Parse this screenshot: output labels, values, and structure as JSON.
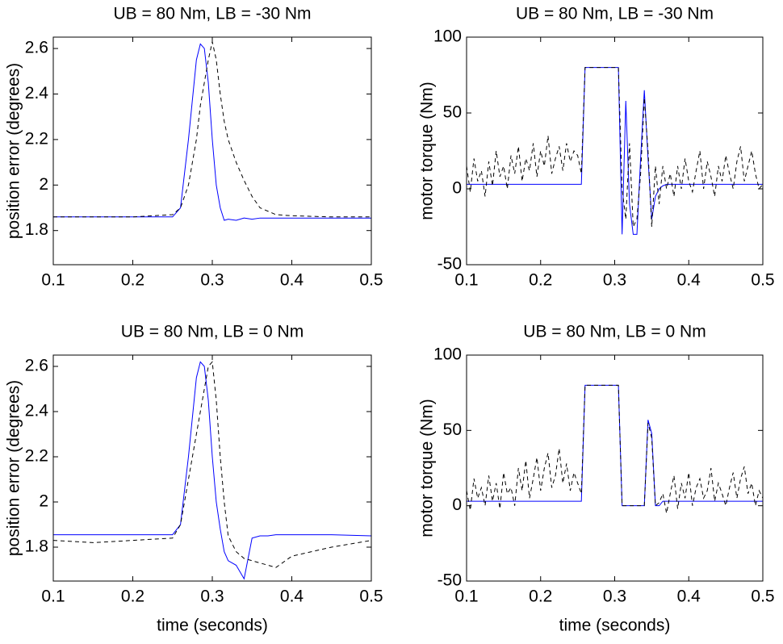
{
  "chart_data": [
    {
      "type": "line",
      "title": "UB = 80 Nm, LB = -30 Nm",
      "y_label": "position error (degrees)",
      "x": [
        0.1,
        0.15,
        0.2,
        0.25,
        0.26,
        0.27,
        0.28,
        0.285,
        0.29,
        0.295,
        0.3,
        0.305,
        0.31,
        0.315,
        0.32,
        0.33,
        0.34,
        0.35,
        0.36,
        0.38,
        0.4,
        0.45,
        0.5
      ],
      "series": [
        {
          "color": "#0000ff",
          "style": "solid",
          "values": [
            1.86,
            1.86,
            1.86,
            1.86,
            1.9,
            2.2,
            2.55,
            2.62,
            2.6,
            2.45,
            2.2,
            2.0,
            1.9,
            1.845,
            1.85,
            1.845,
            1.855,
            1.85,
            1.855,
            1.855,
            1.855,
            1.855,
            1.855
          ]
        },
        {
          "color": "#000000",
          "style": "dashed",
          "values": [
            1.86,
            1.86,
            1.86,
            1.87,
            1.9,
            2.0,
            2.2,
            2.35,
            2.45,
            2.55,
            2.63,
            2.55,
            2.4,
            2.28,
            2.2,
            2.1,
            2.02,
            1.95,
            1.9,
            1.87,
            1.865,
            1.86,
            1.86
          ]
        }
      ],
      "xlim": [
        0.1,
        0.5
      ],
      "xticks": [
        0.1,
        0.2,
        0.3,
        0.4,
        0.5
      ],
      "ylim": [
        1.65,
        2.65
      ],
      "yticks": [
        1.8,
        2,
        2.2,
        2.4,
        2.6
      ],
      "grid": false
    },
    {
      "type": "line",
      "title": "UB = 80 Nm, LB = -30 Nm",
      "y_label": "motor torque (Nm)",
      "x": [
        0.1,
        0.105,
        0.11,
        0.115,
        0.12,
        0.125,
        0.13,
        0.135,
        0.14,
        0.145,
        0.15,
        0.155,
        0.16,
        0.165,
        0.17,
        0.175,
        0.18,
        0.185,
        0.19,
        0.195,
        0.2,
        0.205,
        0.21,
        0.215,
        0.22,
        0.225,
        0.23,
        0.235,
        0.24,
        0.245,
        0.25,
        0.255,
        0.26,
        0.265,
        0.27,
        0.275,
        0.28,
        0.285,
        0.29,
        0.295,
        0.3,
        0.305,
        0.31,
        0.315,
        0.32,
        0.325,
        0.33,
        0.335,
        0.34,
        0.345,
        0.35,
        0.355,
        0.36,
        0.365,
        0.37,
        0.375,
        0.38,
        0.385,
        0.39,
        0.395,
        0.4,
        0.405,
        0.41,
        0.415,
        0.42,
        0.425,
        0.43,
        0.435,
        0.44,
        0.445,
        0.45,
        0.455,
        0.46,
        0.465,
        0.47,
        0.475,
        0.48,
        0.485,
        0.49,
        0.495,
        0.5
      ],
      "series": [
        {
          "color": "#0000ff",
          "style": "solid",
          "values": [
            3,
            3,
            3,
            3,
            3,
            3,
            3,
            3,
            3,
            3,
            3,
            3,
            3,
            3,
            3,
            3,
            3,
            3,
            3,
            3,
            3,
            3,
            3,
            3,
            3,
            3,
            3,
            3,
            3,
            3,
            3,
            3,
            80,
            80,
            80,
            80,
            80,
            80,
            80,
            80,
            80,
            80,
            -30,
            58,
            -10,
            -30,
            -30,
            20,
            65,
            20,
            -20,
            -5,
            0,
            2,
            3,
            3,
            3,
            3,
            3,
            3,
            3,
            3,
            3,
            3,
            3,
            3,
            3,
            3,
            3,
            3,
            3,
            3,
            3,
            3,
            3,
            3,
            3,
            3,
            3,
            3,
            3
          ]
        },
        {
          "color": "#000000",
          "style": "dashed",
          "values": [
            15,
            -2,
            20,
            5,
            12,
            -5,
            18,
            2,
            25,
            8,
            15,
            0,
            22,
            10,
            28,
            5,
            20,
            12,
            30,
            8,
            25,
            15,
            35,
            10,
            20,
            28,
            12,
            30,
            18,
            25,
            22,
            10,
            80,
            80,
            80,
            80,
            80,
            80,
            80,
            80,
            80,
            80,
            0,
            -20,
            30,
            -25,
            -20,
            10,
            60,
            25,
            -25,
            15,
            -10,
            15,
            0,
            10,
            -5,
            15,
            0,
            20,
            5,
            -2,
            12,
            25,
            0,
            18,
            8,
            -5,
            15,
            5,
            22,
            10,
            0,
            18,
            28,
            5,
            15,
            25,
            10,
            0,
            3
          ]
        }
      ],
      "xlim": [
        0.1,
        0.5
      ],
      "xticks": [
        0.1,
        0.2,
        0.3,
        0.4,
        0.5
      ],
      "ylim": [
        -50,
        100
      ],
      "yticks": [
        -50,
        0,
        50,
        100
      ],
      "grid": false
    },
    {
      "type": "line",
      "title": "UB = 80 Nm, LB = 0 Nm",
      "y_label": "position error (degrees)",
      "x_label": "time (seconds)",
      "x": [
        0.1,
        0.15,
        0.2,
        0.25,
        0.26,
        0.27,
        0.28,
        0.285,
        0.29,
        0.295,
        0.3,
        0.305,
        0.31,
        0.315,
        0.32,
        0.33,
        0.34,
        0.35,
        0.36,
        0.37,
        0.38,
        0.4,
        0.45,
        0.5
      ],
      "series": [
        {
          "color": "#0000ff",
          "style": "solid",
          "values": [
            1.855,
            1.855,
            1.855,
            1.855,
            1.9,
            2.2,
            2.55,
            2.62,
            2.6,
            2.45,
            2.2,
            2.0,
            1.88,
            1.78,
            1.74,
            1.72,
            1.66,
            1.84,
            1.85,
            1.85,
            1.855,
            1.855,
            1.855,
            1.85
          ]
        },
        {
          "color": "#000000",
          "style": "dashed",
          "values": [
            1.83,
            1.82,
            1.83,
            1.84,
            1.9,
            2.1,
            2.3,
            2.4,
            2.5,
            2.6,
            2.62,
            2.45,
            2.2,
            2.0,
            1.85,
            1.78,
            1.75,
            1.74,
            1.73,
            1.72,
            1.71,
            1.76,
            1.8,
            1.83
          ]
        }
      ],
      "xlim": [
        0.1,
        0.5
      ],
      "xticks": [
        0.1,
        0.2,
        0.3,
        0.4,
        0.5
      ],
      "ylim": [
        1.65,
        2.65
      ],
      "yticks": [
        1.8,
        2,
        2.2,
        2.4,
        2.6
      ],
      "grid": false
    },
    {
      "type": "line",
      "title": "UB = 80 Nm, LB = 0 Nm",
      "y_label": "motor torque (Nm)",
      "x_label": "time (seconds)",
      "x": [
        0.1,
        0.105,
        0.11,
        0.115,
        0.12,
        0.125,
        0.13,
        0.135,
        0.14,
        0.145,
        0.15,
        0.155,
        0.16,
        0.165,
        0.17,
        0.175,
        0.18,
        0.185,
        0.19,
        0.195,
        0.2,
        0.205,
        0.21,
        0.215,
        0.22,
        0.225,
        0.23,
        0.235,
        0.24,
        0.245,
        0.25,
        0.255,
        0.26,
        0.265,
        0.27,
        0.275,
        0.28,
        0.285,
        0.29,
        0.295,
        0.3,
        0.305,
        0.31,
        0.315,
        0.32,
        0.325,
        0.33,
        0.335,
        0.34,
        0.345,
        0.35,
        0.355,
        0.36,
        0.365,
        0.37,
        0.375,
        0.38,
        0.385,
        0.39,
        0.395,
        0.4,
        0.405,
        0.41,
        0.415,
        0.42,
        0.425,
        0.43,
        0.435,
        0.44,
        0.445,
        0.45,
        0.455,
        0.46,
        0.465,
        0.47,
        0.475,
        0.48,
        0.485,
        0.49,
        0.495,
        0.5
      ],
      "series": [
        {
          "color": "#0000ff",
          "style": "solid",
          "values": [
            3,
            3,
            3,
            3,
            3,
            3,
            3,
            3,
            3,
            3,
            3,
            3,
            3,
            3,
            3,
            3,
            3,
            3,
            3,
            3,
            3,
            3,
            3,
            3,
            3,
            3,
            3,
            3,
            3,
            3,
            3,
            3,
            80,
            80,
            80,
            80,
            80,
            80,
            80,
            80,
            80,
            80,
            0,
            0,
            0,
            0,
            0,
            0,
            0,
            57,
            48,
            0,
            0,
            3,
            3,
            3,
            3,
            3,
            3,
            3,
            3,
            3,
            3,
            3,
            3,
            3,
            3,
            3,
            3,
            3,
            3,
            3,
            3,
            3,
            3,
            3,
            3,
            3,
            3,
            3,
            3
          ]
        },
        {
          "color": "#000000",
          "style": "dashed",
          "values": [
            10,
            -3,
            18,
            5,
            12,
            0,
            20,
            3,
            15,
            -2,
            22,
            8,
            12,
            0,
            25,
            10,
            30,
            5,
            18,
            32,
            10,
            25,
            35,
            12,
            20,
            38,
            15,
            28,
            10,
            22,
            15,
            8,
            80,
            80,
            80,
            80,
            80,
            80,
            80,
            80,
            80,
            80,
            0,
            0,
            0,
            0,
            0,
            0,
            0,
            55,
            45,
            0,
            2,
            8,
            -5,
            8,
            20,
            -2,
            15,
            5,
            22,
            0,
            12,
            18,
            5,
            10,
            25,
            3,
            15,
            8,
            0,
            12,
            22,
            5,
            18,
            26,
            8,
            15,
            0,
            10,
            5
          ]
        }
      ],
      "xlim": [
        0.1,
        0.5
      ],
      "xticks": [
        0.1,
        0.2,
        0.3,
        0.4,
        0.5
      ],
      "ylim": [
        -50,
        100
      ],
      "yticks": [
        -50,
        0,
        50,
        100
      ],
      "grid": false
    }
  ]
}
